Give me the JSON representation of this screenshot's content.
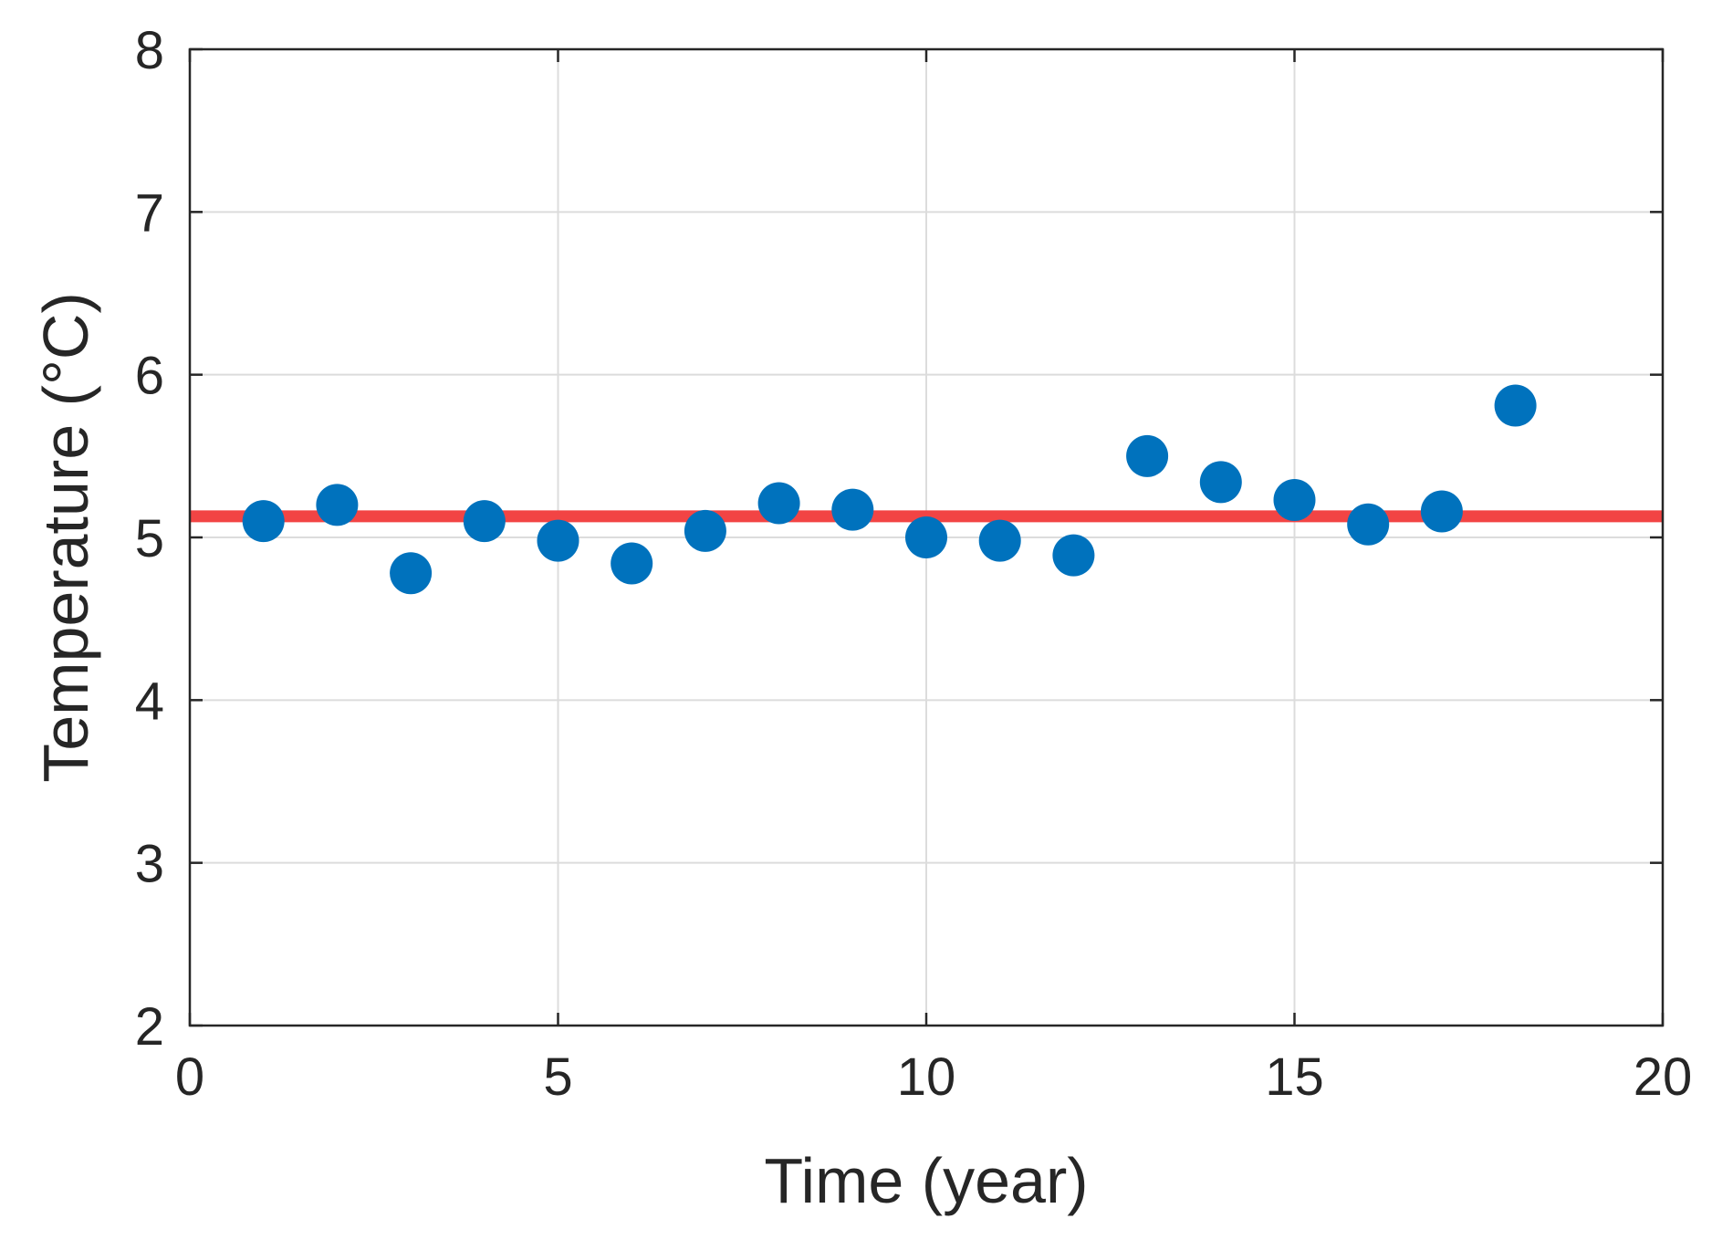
{
  "chart_data": {
    "type": "scatter",
    "title": "",
    "xlabel": "Time (year)",
    "ylabel": "Temperature (°C)",
    "xlim": [
      0,
      20
    ],
    "ylim": [
      2,
      8
    ],
    "xticks": [
      0,
      5,
      10,
      15,
      20
    ],
    "yticks": [
      2,
      3,
      4,
      5,
      6,
      7,
      8
    ],
    "xtick_labels": [
      "0",
      "5",
      "10",
      "15",
      "20"
    ],
    "ytick_labels": [
      "2",
      "3",
      "4",
      "5",
      "6",
      "7",
      "8"
    ],
    "grid": true,
    "series": [
      {
        "type": "scatter",
        "color": "#0072BD",
        "x": [
          1,
          2,
          3,
          4,
          5,
          6,
          7,
          8,
          9,
          10,
          11,
          12,
          13,
          14,
          15,
          16,
          17,
          18
        ],
        "y": [
          5.1,
          5.2,
          4.78,
          5.1,
          4.98,
          4.84,
          5.04,
          5.21,
          5.17,
          5.0,
          4.98,
          4.89,
          5.5,
          5.34,
          5.23,
          5.08,
          5.16,
          5.81
        ]
      },
      {
        "type": "hline",
        "color": "#F24444",
        "y": 5.13
      }
    ]
  }
}
